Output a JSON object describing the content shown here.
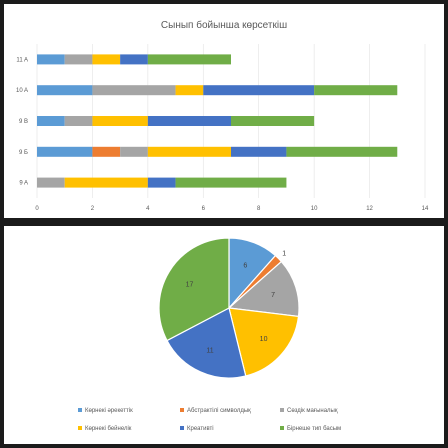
{
  "chart_data": [
    {
      "type": "bar",
      "orientation": "horizontal",
      "stacked": true,
      "title": "Сынып бойынша көрсеткіш",
      "categories": [
        "11 A",
        "10 A",
        "9 B",
        "9 Б",
        "9 A"
      ],
      "xlim": [
        0,
        14
      ],
      "xticks": [
        "0",
        "2",
        "4",
        "6",
        "8",
        "10",
        "12",
        "14"
      ],
      "grid": true,
      "series": [
        {
          "color": "#5b9bd5",
          "values": [
            1,
            2,
            1,
            2,
            0
          ]
        },
        {
          "color": "#ed7d31",
          "values": [
            0,
            0,
            0,
            1,
            0
          ]
        },
        {
          "color": "#a5a5a5",
          "values": [
            1,
            3,
            1,
            1,
            1
          ]
        },
        {
          "color": "#ffc000",
          "values": [
            1,
            1,
            2,
            3,
            3
          ]
        },
        {
          "color": "#4472c4",
          "values": [
            1,
            4,
            3,
            2,
            1
          ]
        },
        {
          "color": "#70ad47",
          "values": [
            3,
            3,
            3,
            4,
            4
          ]
        }
      ]
    },
    {
      "type": "pie",
      "legend_position": "bottom",
      "slices": [
        {
          "name": "Көрнекі әрекеттік",
          "value": 6,
          "color": "#5b9bd5"
        },
        {
          "name": "Абстрактілі символдық",
          "value": 1,
          "color": "#ed7d31"
        },
        {
          "name": "Сөздік мағыналық",
          "value": 7,
          "color": "#a5a5a5"
        },
        {
          "name": "Көрнекі бейнелік",
          "value": 10,
          "color": "#ffc000"
        },
        {
          "name": "Креативті",
          "value": 11,
          "color": "#4472c4"
        },
        {
          "name": "Бірнеше тип басым",
          "value": 17,
          "color": "#70ad47"
        }
      ]
    }
  ]
}
